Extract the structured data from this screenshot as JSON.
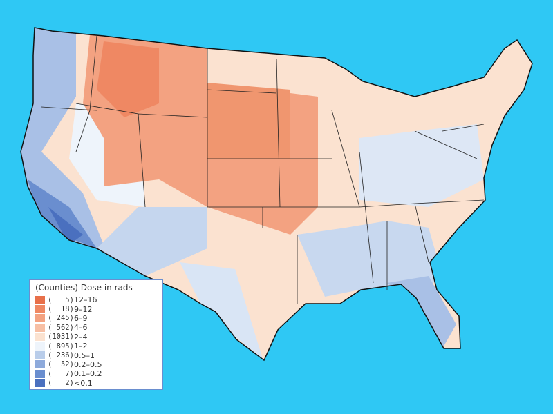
{
  "legend": {
    "title": "(Counties) Dose in rads",
    "items": [
      {
        "count": "(   5)",
        "range": "12–16",
        "color": "#e8704a"
      },
      {
        "count": "(  18)",
        "range": "9–12",
        "color": "#ef8863"
      },
      {
        "count": "( 245)",
        "range": "6–9",
        "color": "#f3a281"
      },
      {
        "count": "( 562)",
        "range": "4–6",
        "color": "#f7bfa4"
      },
      {
        "count": "(1031)",
        "range": "2–4",
        "color": "#fbe2d0"
      },
      {
        "count": "( 895)",
        "range": "1–2",
        "color": "#eef4fb"
      },
      {
        "count": "( 236)",
        "range": "0.5–1",
        "color": "#b9cdea"
      },
      {
        "count": "(  52)",
        "range": "0.2–0.5",
        "color": "#8eaadb"
      },
      {
        "count": "(   7)",
        "range": "0.1–0.2",
        "color": "#6a8ecf"
      },
      {
        "count": "(   2)",
        "range": "<0.1",
        "color": "#4a70bf"
      }
    ]
  }
}
